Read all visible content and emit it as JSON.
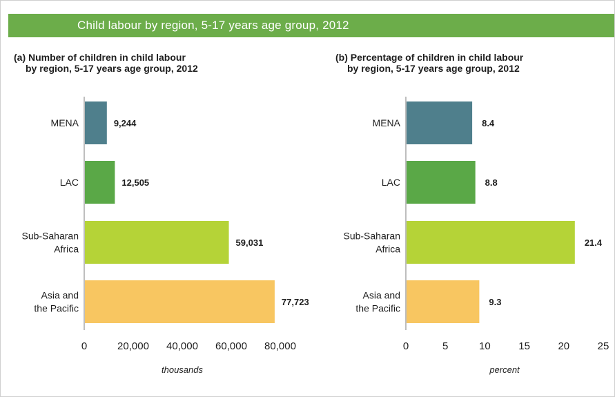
{
  "banner": {
    "title": "Child labour by region, 5-17 years age group, 2012"
  },
  "chart_data": [
    {
      "type": "bar",
      "orientation": "horizontal",
      "title_line1": "(a) Number of children in child labour",
      "title_line2": "by region, 5-17 years age group, 2012",
      "categories": [
        "MENA",
        "LAC",
        "Sub-Saharan Africa",
        "Asia and the Pacific"
      ],
      "category_lines": [
        [
          "MENA"
        ],
        [
          "LAC"
        ],
        [
          "Sub-Saharan",
          "Africa"
        ],
        [
          "Asia and",
          "the Pacific"
        ]
      ],
      "values": [
        9244,
        12505,
        59031,
        77723
      ],
      "data_labels": [
        "9,244",
        "12,505",
        "59,031",
        "77,723"
      ],
      "colors": [
        "#4f7f8c",
        "#5aa847",
        "#b5d337",
        "#f8c661"
      ],
      "xlabel": "thousands",
      "xlim": [
        0,
        80000
      ],
      "ticks": [
        0,
        20000,
        40000,
        60000,
        80000
      ],
      "tick_labels": [
        "0",
        "20,000",
        "40,000",
        "60,000",
        "80,000"
      ],
      "grid": false
    },
    {
      "type": "bar",
      "orientation": "horizontal",
      "title_line1": "(b) Percentage of children in child labour",
      "title_line2": "by region, 5-17 years age group, 2012",
      "categories": [
        "MENA",
        "LAC",
        "Sub-Saharan Africa",
        "Asia and the Pacific"
      ],
      "category_lines": [
        [
          "MENA"
        ],
        [
          "LAC"
        ],
        [
          "Sub-Saharan",
          "Africa"
        ],
        [
          "Asia and",
          "the Pacific"
        ]
      ],
      "values": [
        8.4,
        8.8,
        21.4,
        9.3
      ],
      "data_labels": [
        "8.4",
        "8.8",
        "21.4",
        "9.3"
      ],
      "colors": [
        "#4f7f8c",
        "#5aa847",
        "#b5d337",
        "#f8c661"
      ],
      "xlabel": "percent",
      "xlim": [
        0,
        25
      ],
      "ticks": [
        0,
        5,
        10,
        15,
        20,
        25
      ],
      "tick_labels": [
        "0",
        "5",
        "10",
        "15",
        "20",
        "25"
      ],
      "grid": false
    }
  ]
}
